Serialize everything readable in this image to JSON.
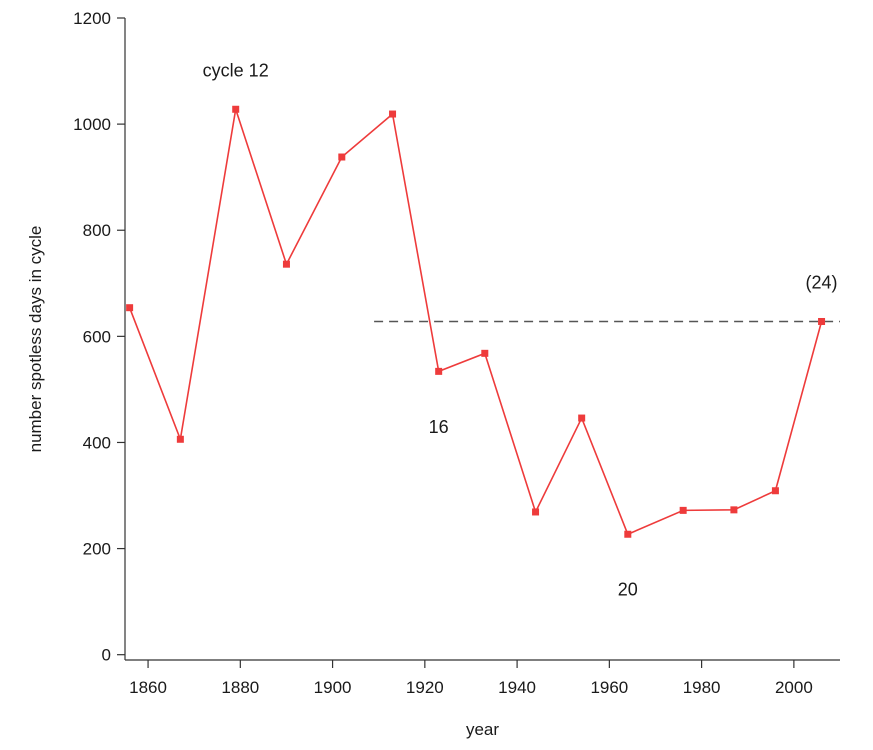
{
  "chart_data": {
    "type": "line",
    "title": "",
    "xlabel": "year",
    "ylabel": "number spotless days in cycle",
    "xlim": [
      1855,
      2010
    ],
    "ylim": [
      -10,
      1200
    ],
    "xticks": [
      1860,
      1880,
      1900,
      1920,
      1940,
      1960,
      1980,
      2000
    ],
    "yticks": [
      0,
      200,
      400,
      600,
      800,
      1000,
      1200
    ],
    "grid": false,
    "series": [
      {
        "color": "#ee3b3b",
        "x": [
          1856,
          1867,
          1879,
          1890,
          1902,
          1913,
          1923,
          1933,
          1944,
          1954,
          1964,
          1976,
          1987,
          1996,
          2006
        ],
        "y": [
          654,
          406,
          1028,
          736,
          938,
          1019,
          534,
          568,
          269,
          446,
          227,
          272,
          273,
          309,
          628
        ]
      }
    ],
    "reference_line": {
      "y": 628,
      "x_start": 1909,
      "x_end": 2010,
      "style": "dashed",
      "color": "#555555"
    },
    "annotations": [
      {
        "text": "cycle 12",
        "x": 1879,
        "y": 1090
      },
      {
        "text": "16",
        "x": 1923,
        "y": 418
      },
      {
        "text": "20",
        "x": 1964,
        "y": 112
      },
      {
        "text": "(24)",
        "x": 2006,
        "y": 690
      }
    ]
  }
}
